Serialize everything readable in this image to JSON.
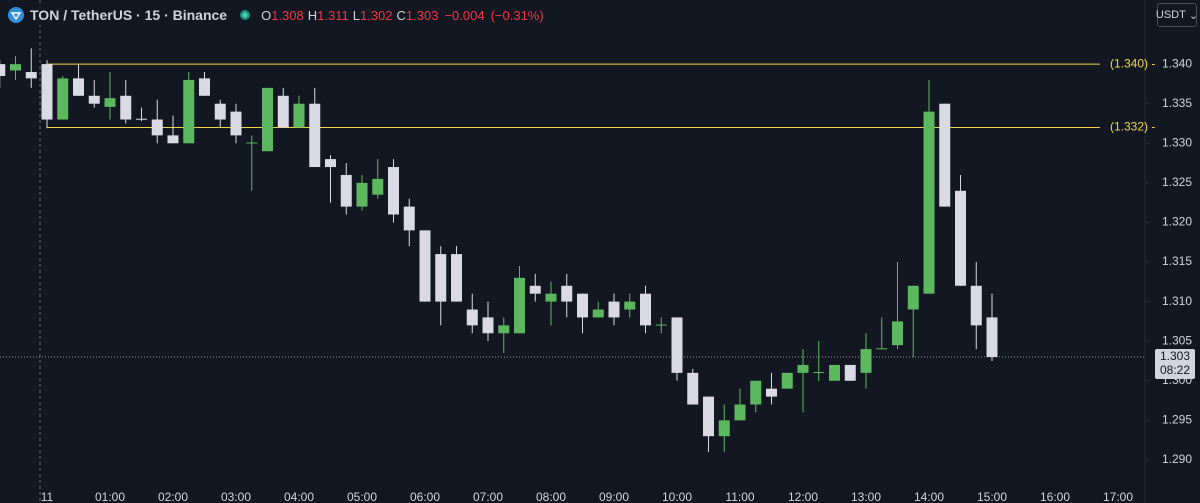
{
  "chart_data": {
    "type": "candlestick",
    "title": "TON / TetherUS · 15 · Binance",
    "legend_ohlc": [
      {
        "letter": "O",
        "value": 1.308
      },
      {
        "letter": "H",
        "value": 1.311
      },
      {
        "letter": "L",
        "value": 1.302
      },
      {
        "letter": "C",
        "value": 1.303
      }
    ],
    "change": {
      "value": -0.004,
      "label": "−0.004"
    },
    "change_pct": {
      "value": -0.31,
      "label": "(−0.31%)"
    },
    "currency": "USDT",
    "up_color": "#5cb85f",
    "down_color": "#d9dae4",
    "categories": [
      null,
      null,
      null,
      "11",
      null,
      null,
      null,
      "01:00",
      null,
      null,
      null,
      "02:00",
      null,
      null,
      null,
      "03:00",
      null,
      null,
      null,
      "04:00",
      null,
      null,
      null,
      "05:00",
      null,
      null,
      null,
      "06:00",
      null,
      null,
      null,
      "07:00",
      null,
      null,
      null,
      "08:00",
      null,
      null,
      null,
      "09:00",
      null,
      null,
      null,
      "10:00",
      null,
      null,
      null,
      "11:00",
      null,
      null,
      null,
      "12:00",
      null,
      null,
      null,
      "13:00",
      null,
      null,
      null,
      "14:00",
      null,
      null,
      null,
      "15:00",
      null,
      null,
      null,
      "16:00",
      null,
      null,
      null,
      "17:00"
    ],
    "open": [
      1.34,
      1.3392,
      1.339,
      1.34,
      1.333,
      1.3382,
      1.336,
      1.3346,
      1.336,
      1.3331,
      1.333,
      1.331,
      1.33,
      1.3382,
      1.335,
      1.334,
      1.33,
      1.329,
      1.336,
      1.332,
      1.335,
      1.328,
      1.326,
      1.322,
      1.3235,
      1.327,
      1.322,
      1.319,
      1.316,
      1.316,
      1.309,
      1.308,
      1.306,
      1.306,
      1.312,
      1.31,
      1.312,
      1.311,
      1.308,
      1.31,
      1.309,
      1.311,
      1.307,
      1.308,
      1.301,
      1.298,
      1.293,
      1.295,
      1.297,
      1.299,
      1.299,
      1.301,
      1.301,
      1.3,
      1.302,
      1.301,
      1.304,
      1.3045,
      1.309,
      1.311,
      1.335,
      1.324,
      1.312,
      1.308,
      null,
      null,
      null,
      null,
      null,
      null,
      null,
      null
    ],
    "high": [
      1.3405,
      1.341,
      1.342,
      1.3405,
      1.3385,
      1.34,
      1.338,
      1.339,
      1.338,
      1.3345,
      1.3355,
      1.3335,
      1.339,
      1.339,
      1.3355,
      1.335,
      1.331,
      1.337,
      1.337,
      1.336,
      1.337,
      1.3285,
      1.3275,
      1.326,
      1.328,
      1.328,
      1.323,
      1.319,
      1.317,
      1.317,
      1.311,
      1.31,
      1.308,
      1.3145,
      1.3135,
      1.3125,
      1.3135,
      1.311,
      1.31,
      1.311,
      1.311,
      1.312,
      1.308,
      1.308,
      1.3015,
      1.298,
      1.297,
      1.299,
      1.3,
      1.301,
      1.301,
      1.304,
      1.305,
      1.302,
      1.302,
      1.306,
      1.308,
      1.315,
      1.312,
      1.338,
      1.335,
      1.326,
      1.315,
      1.311,
      null,
      null,
      null,
      null,
      null,
      null,
      null,
      null
    ],
    "low": [
      1.337,
      1.338,
      1.337,
      1.3319,
      1.333,
      1.336,
      1.3345,
      1.333,
      1.3325,
      1.3328,
      1.33,
      1.33,
      1.33,
      1.336,
      1.332,
      1.33,
      1.324,
      1.329,
      1.332,
      1.332,
      1.327,
      1.3225,
      1.321,
      1.3215,
      1.323,
      1.32,
      1.317,
      1.31,
      1.307,
      1.31,
      1.306,
      1.305,
      1.3035,
      1.306,
      1.31,
      1.307,
      1.308,
      1.306,
      1.308,
      1.307,
      1.308,
      1.306,
      1.306,
      1.3,
      1.297,
      1.291,
      1.291,
      1.295,
      1.296,
      1.297,
      1.299,
      1.296,
      1.3,
      1.3,
      1.3,
      1.299,
      1.304,
      1.304,
      1.303,
      1.311,
      1.322,
      1.312,
      1.304,
      1.3025,
      null,
      null,
      null,
      null,
      null,
      null,
      null,
      null
    ],
    "close": [
      1.3385,
      1.34,
      1.3382,
      1.333,
      1.3382,
      1.336,
      1.335,
      1.3357,
      1.333,
      1.333,
      1.331,
      1.33,
      1.338,
      1.336,
      1.333,
      1.331,
      1.3301,
      1.337,
      1.332,
      1.335,
      1.327,
      1.327,
      1.322,
      1.325,
      1.3255,
      1.321,
      1.319,
      1.31,
      1.31,
      1.31,
      1.307,
      1.306,
      1.307,
      1.313,
      1.311,
      1.311,
      1.31,
      1.308,
      1.309,
      1.308,
      1.31,
      1.307,
      1.3071,
      1.301,
      1.297,
      1.293,
      1.295,
      1.297,
      1.3,
      1.298,
      1.301,
      1.302,
      1.3011,
      1.302,
      1.3,
      1.304,
      1.3041,
      1.3075,
      1.312,
      1.334,
      1.322,
      1.312,
      1.307,
      1.303,
      null,
      null,
      null,
      null,
      null,
      null,
      null,
      null
    ],
    "ylim": [
      1.2862,
      1.3481
    ],
    "yticks": [
      {
        "value": 1.29,
        "label": "1.290"
      },
      {
        "value": 1.295,
        "label": "1.295"
      },
      {
        "value": 1.3,
        "label": "1.300"
      },
      {
        "value": 1.305,
        "label": "1.305"
      },
      {
        "value": 1.31,
        "label": "1.310"
      },
      {
        "value": 1.315,
        "label": "1.315"
      },
      {
        "value": 1.32,
        "label": "1.320"
      },
      {
        "value": 1.325,
        "label": "1.325"
      },
      {
        "value": 1.33,
        "label": "1.330"
      },
      {
        "value": 1.335,
        "label": "1.335"
      },
      {
        "value": 1.34,
        "label": "1.340"
      }
    ],
    "hlines": [
      {
        "value": 1.34,
        "label": "(1.340) -"
      },
      {
        "value": 1.332,
        "label": "(1.332) -"
      }
    ],
    "hline_color": "#f0d64a",
    "last_price": 1.303,
    "countdown": "08:22"
  }
}
